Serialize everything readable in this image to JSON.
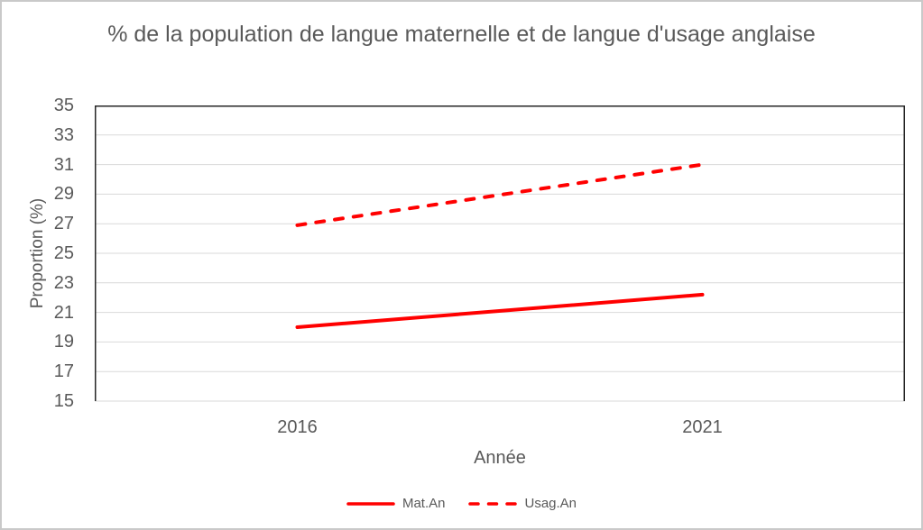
{
  "chart_data": {
    "type": "line",
    "title": "% de la population de langue maternelle et de langue d'usage anglaise",
    "xlabel": "Année",
    "ylabel": "Proportion (%)",
    "categories": [
      "2016",
      "2021"
    ],
    "series": [
      {
        "name": "Mat.An",
        "values": [
          20.0,
          22.2
        ],
        "style": "solid",
        "color": "#FF0000"
      },
      {
        "name": "Usag.An",
        "values": [
          26.9,
          31.0
        ],
        "style": "dashed",
        "color": "#FF0000"
      }
    ],
    "ylim": [
      15,
      35
    ],
    "ytick_step": 2,
    "grid": true,
    "legend_position": "bottom"
  },
  "colors": {
    "series_red": "#FF0000",
    "text_gray": "#595959",
    "gridline": "#D9D9D9",
    "axis_line": "#262626",
    "frame_border": "#C9C9C9"
  }
}
